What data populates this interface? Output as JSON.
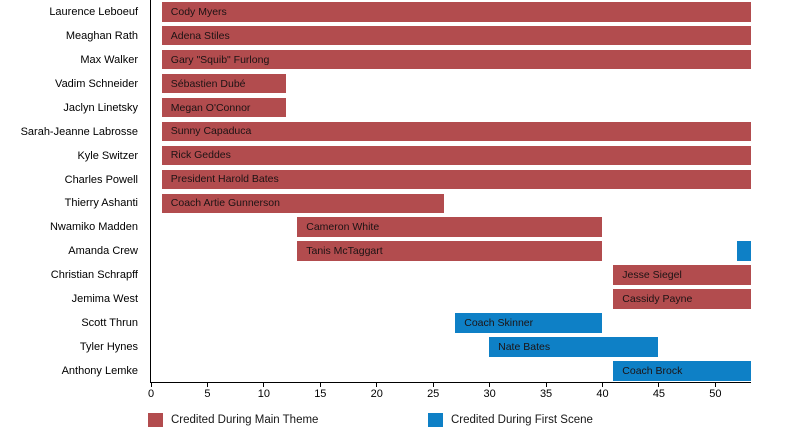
{
  "colors": {
    "main_theme": "#b24c4e",
    "first_scene": "#0e80c6",
    "axis": "#000000",
    "bar_label_text": "#1c1314"
  },
  "chart_data": {
    "type": "bar",
    "subtype": "horizontal-gantt",
    "title": "",
    "xlabel": "",
    "ylabel": "",
    "xlim": [
      0,
      53.2
    ],
    "xticks": [
      0,
      5,
      10,
      15,
      20,
      25,
      30,
      35,
      40,
      45,
      50
    ],
    "grid": false,
    "legend_position": "bottom",
    "legend": [
      {
        "label": "Credited During Main Theme",
        "series": "main_theme"
      },
      {
        "label": "Credited During First Scene",
        "series": "first_scene"
      }
    ],
    "rows": [
      {
        "actor": "Laurence Leboeuf",
        "character": "Cody Myers",
        "segments": [
          {
            "start": 1,
            "end": 53.2,
            "series": "main_theme"
          }
        ]
      },
      {
        "actor": "Meaghan Rath",
        "character": "Adena Stiles",
        "segments": [
          {
            "start": 1,
            "end": 53.2,
            "series": "main_theme"
          }
        ]
      },
      {
        "actor": "Max Walker",
        "character": "Gary \"Squib\" Furlong",
        "segments": [
          {
            "start": 1,
            "end": 53.2,
            "series": "main_theme"
          }
        ]
      },
      {
        "actor": "Vadim Schneider",
        "character": "Sébastien Dubé",
        "segments": [
          {
            "start": 1,
            "end": 12,
            "series": "main_theme"
          }
        ]
      },
      {
        "actor": "Jaclyn Linetsky",
        "character": "Megan O'Connor",
        "segments": [
          {
            "start": 1,
            "end": 12,
            "series": "main_theme"
          }
        ]
      },
      {
        "actor": "Sarah-Jeanne Labrosse",
        "character": "Sunny Capaduca",
        "segments": [
          {
            "start": 1,
            "end": 53.2,
            "series": "main_theme"
          }
        ]
      },
      {
        "actor": "Kyle Switzer",
        "character": "Rick Geddes",
        "segments": [
          {
            "start": 1,
            "end": 53.2,
            "series": "main_theme"
          }
        ]
      },
      {
        "actor": "Charles Powell",
        "character": "President Harold Bates",
        "segments": [
          {
            "start": 1,
            "end": 53.2,
            "series": "main_theme"
          }
        ]
      },
      {
        "actor": "Thierry Ashanti",
        "character": "Coach Artie Gunnerson",
        "segments": [
          {
            "start": 1,
            "end": 26,
            "series": "main_theme"
          }
        ]
      },
      {
        "actor": "Nwamiko Madden",
        "character": "Cameron White",
        "segments": [
          {
            "start": 13,
            "end": 40,
            "series": "main_theme"
          }
        ]
      },
      {
        "actor": "Amanda Crew",
        "character": "Tanis McTaggart",
        "segments": [
          {
            "start": 13,
            "end": 40,
            "series": "main_theme"
          },
          {
            "start": 52,
            "end": 53.2,
            "series": "first_scene"
          }
        ]
      },
      {
        "actor": "Christian Schrapff",
        "character": "Jesse Siegel",
        "segments": [
          {
            "start": 41,
            "end": 53.2,
            "series": "main_theme"
          }
        ]
      },
      {
        "actor": "Jemima West",
        "character": "Cassidy Payne",
        "segments": [
          {
            "start": 41,
            "end": 53.2,
            "series": "main_theme"
          }
        ]
      },
      {
        "actor": "Scott Thrun",
        "character": "Coach Skinner",
        "segments": [
          {
            "start": 27,
            "end": 40,
            "series": "first_scene"
          }
        ]
      },
      {
        "actor": "Tyler Hynes",
        "character": "Nate Bates",
        "segments": [
          {
            "start": 30,
            "end": 45,
            "series": "first_scene"
          }
        ]
      },
      {
        "actor": "Anthony Lemke",
        "character": "Coach Brock",
        "segments": [
          {
            "start": 41,
            "end": 53.2,
            "series": "first_scene"
          }
        ]
      }
    ]
  }
}
